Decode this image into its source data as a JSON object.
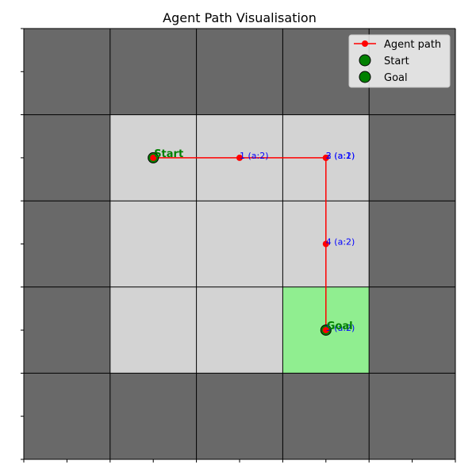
{
  "chart_data": {
    "type": "scatter",
    "title": "Agent Path Visualisation",
    "xlabel": "",
    "ylabel": "",
    "xlim": [
      0,
      5
    ],
    "ylim": [
      5,
      0
    ],
    "grid": {
      "rows": 5,
      "cols": 5,
      "cells": [
        [
          "wall",
          "wall",
          "wall",
          "wall",
          "wall"
        ],
        [
          "wall",
          "free",
          "free",
          "free",
          "wall"
        ],
        [
          "wall",
          "free",
          "free",
          "free",
          "wall"
        ],
        [
          "wall",
          "free",
          "free",
          "goal",
          "wall"
        ],
        [
          "wall",
          "wall",
          "wall",
          "wall",
          "wall"
        ]
      ],
      "colors": {
        "wall": "#696969",
        "free": "#d3d3d3",
        "goal": "#90ee90"
      }
    },
    "series": [
      {
        "name": "Agent path",
        "color": "#ff0000",
        "x": [
          1.5,
          2.5,
          3.5,
          3.5,
          3.5,
          3.5
        ],
        "y": [
          1.5,
          1.5,
          1.5,
          1.5,
          2.5,
          3.5
        ]
      },
      {
        "name": "Start",
        "color": "#008000",
        "x": [
          1.5
        ],
        "y": [
          1.5
        ]
      },
      {
        "name": "Goal",
        "color": "#008000",
        "x": [
          3.5
        ],
        "y": [
          3.5
        ]
      }
    ],
    "step_labels": [
      {
        "text": "1 (a:2)",
        "x": 2.5,
        "y": 1.5
      },
      {
        "text": "2 (a:1)",
        "x": 3.5,
        "y": 1.5
      },
      {
        "text": "3 (a:2)",
        "x": 3.5,
        "y": 1.5
      },
      {
        "text": "4 (a:2)",
        "x": 3.5,
        "y": 2.5
      },
      {
        "text": "5 (a:2)",
        "x": 3.5,
        "y": 3.5
      }
    ],
    "point_labels": [
      {
        "text": "Start",
        "x": 1.5,
        "y": 1.5
      },
      {
        "text": "Goal",
        "x": 3.5,
        "y": 3.5
      }
    ],
    "legend": {
      "position": "top-right",
      "entries": [
        {
          "label": "Agent path",
          "marker": "line-dot"
        },
        {
          "label": "Start",
          "marker": "circle"
        },
        {
          "label": "Goal",
          "marker": "circle"
        }
      ]
    }
  }
}
